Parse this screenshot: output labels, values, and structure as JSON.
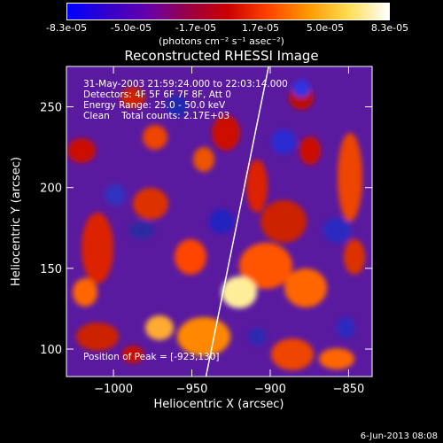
{
  "colorbar": {
    "ticks": [
      "-8.3e-05",
      "-5.0e-05",
      "-1.7e-05",
      "1.7e-05",
      "5.0e-05",
      "8.3e-05"
    ],
    "units": "(photons cm⁻² s⁻¹ asec⁻²)",
    "colors": [
      "#0000ff",
      "#3300cc",
      "#6600aa",
      "#990044",
      "#cc0000",
      "#ff4400",
      "#ff9900",
      "#ffdd55",
      "#ffffff"
    ]
  },
  "chart_data": {
    "type": "heatmap",
    "title": "Reconstructed RHESSI Image",
    "xlabel": "Heliocentric X (arcsec)",
    "ylabel": "Heliocentric Y (arcsec)",
    "xlim": [
      -1030,
      -835
    ],
    "ylim": [
      83,
      275
    ],
    "x_ticks": [
      -1000,
      -950,
      -900,
      -850
    ],
    "y_ticks": [
      100,
      150,
      200,
      250
    ],
    "x_tick_labels": [
      "−1000",
      "−950",
      "−900",
      "−850"
    ],
    "y_tick_labels": [
      "100",
      "150",
      "200",
      "250"
    ],
    "limb_line": [
      [
        -941,
        83
      ],
      [
        -901,
        275
      ]
    ],
    "peak": [
      -923,
      130
    ],
    "value_range": [
      -8.3e-05,
      8.3e-05
    ]
  },
  "annotations": {
    "time": "31-May-2003 21:59:24.000 to 22:03:14.000",
    "detectors": "Detectors: 4F 5F 6F 7F 8F, Att 0",
    "energy": "Energy Range: 25.0 - 50.0 keV",
    "clean": "Clean    Total counts: 2.17E+03",
    "peak_label": "Position of Peak = [-923,130]"
  },
  "footer": {
    "date": "6-Jun-2013 08:08"
  }
}
